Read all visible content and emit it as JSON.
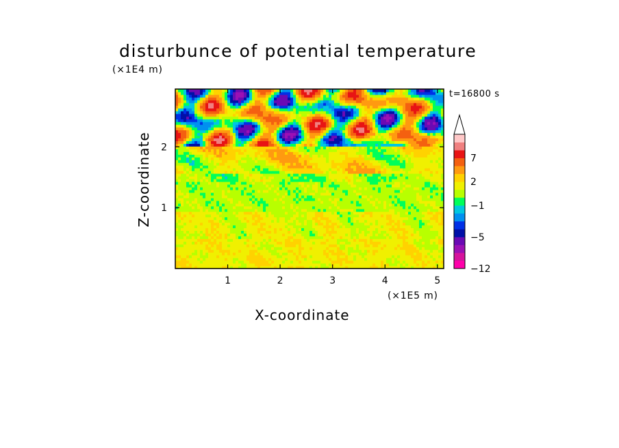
{
  "chart_data": {
    "type": "heatmap",
    "title": "disturbunce of potential temperature",
    "xlabel": "X-coordinate",
    "ylabel": "Z-coordinate",
    "x_scale_label": "(×1E5 m)",
    "y_scale_label": "(×1E4 m)",
    "annotation": "t=16800 s",
    "xlim": [
      0,
      5.12
    ],
    "ylim": [
      0,
      2.95
    ],
    "x_ticks": [
      1,
      2,
      3,
      4,
      5
    ],
    "y_ticks": [
      1,
      2
    ],
    "colorbar": {
      "ticks": [
        "7",
        "2",
        "−1",
        "−5",
        "−12"
      ],
      "levels": [
        -12,
        -9,
        -7,
        -5,
        -4,
        -3,
        -2,
        -1,
        0,
        1,
        2,
        3,
        5,
        7,
        9,
        12
      ],
      "colors": [
        "#ff00aa",
        "#d6139c",
        "#9c10b4",
        "#6a0ab4",
        "#0010a8",
        "#0030e6",
        "#0090f0",
        "#00c8e0",
        "#00ff5a",
        "#b8ff00",
        "#f0f000",
        "#ffd200",
        "#ff9a10",
        "#f46010",
        "#e81414",
        "#f08080",
        "#ffc8c8"
      ],
      "extend_top": true
    },
    "field_layers": [
      {
        "z_range": [
          0,
          0.5
        ],
        "dominant": "1 to 2",
        "secondary": "2 to 3"
      },
      {
        "z_range": [
          0.5,
          0.95
        ],
        "dominant": "1 to 2",
        "secondary": "0 to 1"
      },
      {
        "z_range": [
          0.95,
          1.55
        ],
        "dominant": "0 to 1",
        "secondary": "1 to 2"
      },
      {
        "z_range": [
          1.55,
          2.0
        ],
        "dominant": "1 to 2",
        "secondary": "3 to 5"
      },
      {
        "z_range": [
          2.0,
          2.95
        ],
        "dominant": "wave pattern −9 to 9",
        "secondary": "mixed"
      }
    ]
  }
}
